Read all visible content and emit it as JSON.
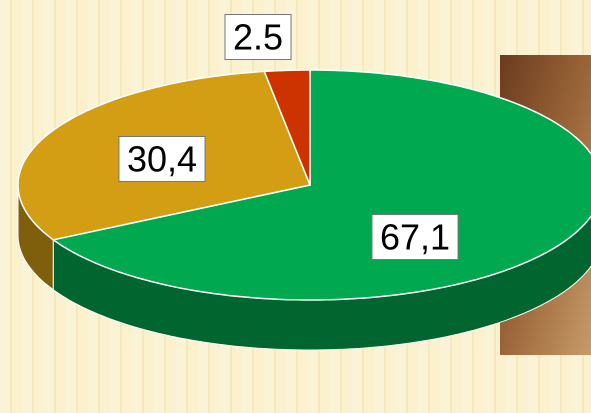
{
  "chart_data": {
    "type": "pie",
    "categories": [
      null,
      null,
      null
    ],
    "values": [
      67.1,
      30.4,
      2.5
    ],
    "value_labels": [
      "67,1",
      "30,4",
      "2.5"
    ],
    "colors": [
      "#00a94f",
      "#d49e14",
      "#cc3300"
    ]
  }
}
